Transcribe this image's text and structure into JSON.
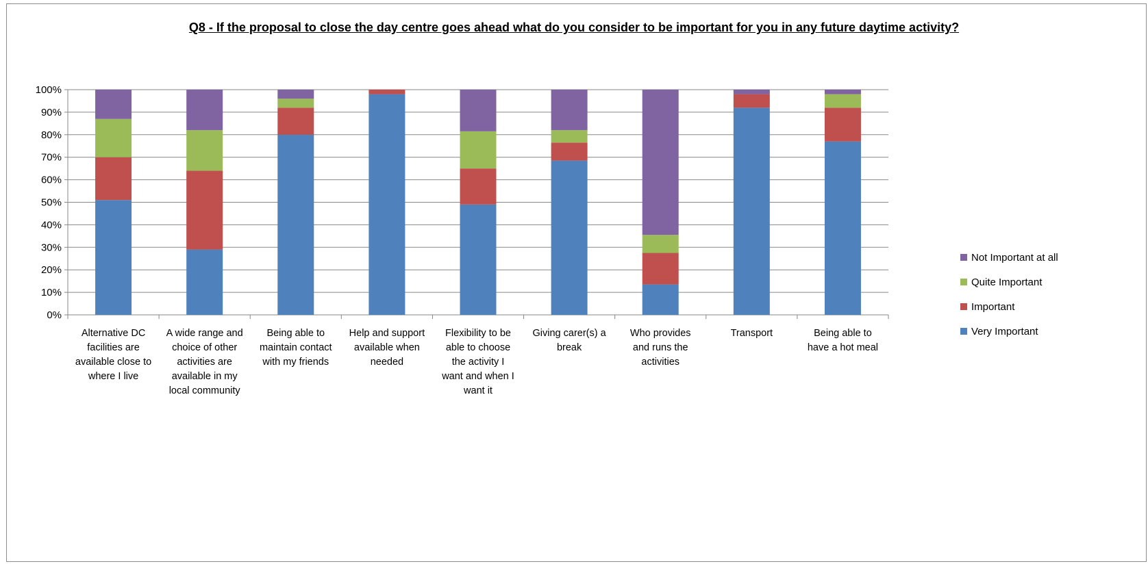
{
  "chart_data": {
    "type": "bar",
    "stacked": true,
    "title": "Q8 - If the proposal to close the day centre goes ahead what do you consider to be important for you in any future daytime activity?",
    "xlabel": "",
    "ylabel": "",
    "ylim": [
      0,
      100
    ],
    "y_tick_labels": [
      "0%",
      "10%",
      "20%",
      "30%",
      "40%",
      "50%",
      "60%",
      "70%",
      "80%",
      "90%",
      "100%"
    ],
    "grid": true,
    "legend_position": "right",
    "categories": [
      [
        "Alternative DC",
        "facilities are",
        "available close to",
        "where I live"
      ],
      [
        "A wide range and",
        "choice of other",
        "activities are",
        "available in my",
        "local community"
      ],
      [
        "Being able to",
        "maintain contact",
        "with my friends"
      ],
      [
        "Help and support",
        "available when",
        "needed"
      ],
      [
        "Flexibility to be",
        "able to choose",
        "the activity I",
        "want and when I",
        "want it"
      ],
      [
        "Giving carer(s) a",
        "break"
      ],
      [
        "Who provides",
        "and runs the",
        "activities"
      ],
      [
        "Transport"
      ],
      [
        "Being able to",
        "have a hot meal"
      ]
    ],
    "series": [
      {
        "name": "Very Important",
        "color": "#4f81bd",
        "values": [
          51,
          29,
          80,
          98,
          49,
          68.5,
          13.5,
          92,
          77
        ]
      },
      {
        "name": "Important",
        "color": "#c0504d",
        "values": [
          19,
          35,
          12,
          2,
          16,
          8,
          14,
          6,
          15
        ]
      },
      {
        "name": "Quite Important",
        "color": "#9bbb59",
        "values": [
          17,
          18,
          4,
          0,
          16.5,
          5.5,
          8,
          0,
          6
        ]
      },
      {
        "name": "Not Important at all",
        "color": "#8064a2",
        "values": [
          13,
          18,
          4,
          0,
          18.5,
          18,
          64.5,
          2,
          2
        ]
      }
    ],
    "legend_order": [
      "Not Important at all",
      "Quite Important",
      "Important",
      "Very Important"
    ]
  }
}
